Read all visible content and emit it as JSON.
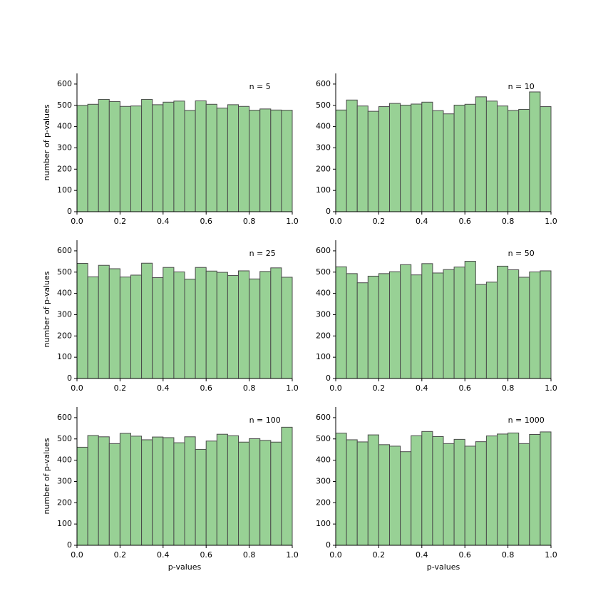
{
  "chart_data": [
    {
      "type": "histogram",
      "annotation": "n = 5",
      "ylabel": "number of p-values",
      "bins": [
        0,
        0.05,
        0.1,
        0.15,
        0.2,
        0.25,
        0.3,
        0.35,
        0.4,
        0.45,
        0.5,
        0.55,
        0.6,
        0.65,
        0.7,
        0.75,
        0.8,
        0.85,
        0.9,
        0.95,
        1
      ],
      "counts": [
        500,
        505,
        528,
        518,
        495,
        497,
        528,
        503,
        515,
        520,
        476,
        521,
        505,
        487,
        503,
        495,
        477,
        483,
        478,
        477
      ],
      "color": "#98d195",
      "edgecolor": "#4a4a4a",
      "xlim": [
        0,
        1
      ],
      "xticks": [
        {
          "value": 0,
          "label": "0.0"
        },
        0.2,
        0.4,
        0.6,
        0.8,
        {
          "value": 1,
          "label": "1.0"
        }
      ],
      "ylim": [
        0,
        650
      ],
      "yticks": [
        0,
        100,
        200,
        300,
        400,
        500,
        600
      ]
    },
    {
      "type": "histogram",
      "annotation": "n = 10",
      "bins": [
        0,
        0.05,
        0.1,
        0.15,
        0.2,
        0.25,
        0.3,
        0.35,
        0.4,
        0.45,
        0.5,
        0.55,
        0.6,
        0.65,
        0.7,
        0.75,
        0.8,
        0.85,
        0.9,
        0.95,
        1
      ],
      "counts": [
        478,
        525,
        497,
        472,
        494,
        509,
        501,
        506,
        515,
        475,
        460,
        501,
        505,
        540,
        520,
        497,
        476,
        481,
        563,
        494
      ],
      "color": "#98d195",
      "edgecolor": "#4a4a4a",
      "xlim": [
        0,
        1
      ],
      "xticks": [
        {
          "value": 0,
          "label": "0.0"
        },
        0.2,
        0.4,
        0.6,
        0.8,
        {
          "value": 1,
          "label": "1.0"
        }
      ],
      "ylim": [
        0,
        650
      ],
      "yticks": [
        0,
        100,
        200,
        300,
        400,
        500,
        600
      ]
    },
    {
      "type": "histogram",
      "annotation": "n = 25",
      "ylabel": "number of p-values",
      "bins": [
        0,
        0.05,
        0.1,
        0.15,
        0.2,
        0.25,
        0.3,
        0.35,
        0.4,
        0.45,
        0.5,
        0.55,
        0.6,
        0.65,
        0.7,
        0.75,
        0.8,
        0.85,
        0.9,
        0.95,
        1
      ],
      "counts": [
        541,
        478,
        532,
        516,
        477,
        486,
        542,
        474,
        522,
        501,
        467,
        522,
        505,
        499,
        484,
        506,
        468,
        503,
        520,
        476
      ],
      "color": "#98d195",
      "edgecolor": "#4a4a4a",
      "xlim": [
        0,
        1
      ],
      "xticks": [
        {
          "value": 0,
          "label": "0.0"
        },
        0.2,
        0.4,
        0.6,
        0.8,
        {
          "value": 1,
          "label": "1.0"
        }
      ],
      "ylim": [
        0,
        650
      ],
      "yticks": [
        0,
        100,
        200,
        300,
        400,
        500,
        600
      ]
    },
    {
      "type": "histogram",
      "annotation": "n = 50",
      "bins": [
        0,
        0.05,
        0.1,
        0.15,
        0.2,
        0.25,
        0.3,
        0.35,
        0.4,
        0.45,
        0.5,
        0.55,
        0.6,
        0.65,
        0.7,
        0.75,
        0.8,
        0.85,
        0.9,
        0.95,
        1
      ],
      "counts": [
        525,
        493,
        450,
        481,
        493,
        502,
        535,
        487,
        540,
        496,
        512,
        524,
        551,
        442,
        453,
        528,
        511,
        476,
        501,
        506
      ],
      "color": "#98d195",
      "edgecolor": "#4a4a4a",
      "xlim": [
        0,
        1
      ],
      "xticks": [
        {
          "value": 0,
          "label": "0.0"
        },
        0.2,
        0.4,
        0.6,
        0.8,
        {
          "value": 1,
          "label": "1.0"
        }
      ],
      "ylim": [
        0,
        650
      ],
      "yticks": [
        0,
        100,
        200,
        300,
        400,
        500,
        600
      ]
    },
    {
      "type": "histogram",
      "annotation": "n = 100",
      "ylabel": "number of p-values",
      "xlabel": "p-values",
      "bins": [
        0,
        0.05,
        0.1,
        0.15,
        0.2,
        0.25,
        0.3,
        0.35,
        0.4,
        0.45,
        0.5,
        0.55,
        0.6,
        0.65,
        0.7,
        0.75,
        0.8,
        0.85,
        0.9,
        0.95,
        1
      ],
      "counts": [
        461,
        516,
        510,
        478,
        526,
        513,
        496,
        509,
        506,
        482,
        510,
        451,
        490,
        522,
        515,
        485,
        501,
        493,
        485,
        555
      ],
      "color": "#98d195",
      "edgecolor": "#4a4a4a",
      "xlim": [
        0,
        1
      ],
      "xticks": [
        {
          "value": 0,
          "label": "0.0"
        },
        0.2,
        0.4,
        0.6,
        0.8,
        {
          "value": 1,
          "label": "1.0"
        }
      ],
      "ylim": [
        0,
        650
      ],
      "yticks": [
        0,
        100,
        200,
        300,
        400,
        500,
        600
      ]
    },
    {
      "type": "histogram",
      "annotation": "n = 1000",
      "xlabel": "p-values",
      "bins": [
        0,
        0.05,
        0.1,
        0.15,
        0.2,
        0.25,
        0.3,
        0.35,
        0.4,
        0.45,
        0.5,
        0.55,
        0.6,
        0.65,
        0.7,
        0.75,
        0.8,
        0.85,
        0.9,
        0.95,
        1
      ],
      "counts": [
        527,
        496,
        486,
        519,
        473,
        466,
        440,
        515,
        535,
        511,
        478,
        498,
        466,
        487,
        514,
        523,
        528,
        478,
        521,
        533
      ],
      "color": "#98d195",
      "edgecolor": "#4a4a4a",
      "xlim": [
        0,
        1
      ],
      "xticks": [
        {
          "value": 0,
          "label": "0.0"
        },
        0.2,
        0.4,
        0.6,
        0.8,
        {
          "value": 1,
          "label": "1.0"
        }
      ],
      "ylim": [
        0,
        650
      ],
      "yticks": [
        0,
        100,
        200,
        300,
        400,
        500,
        600
      ]
    }
  ]
}
